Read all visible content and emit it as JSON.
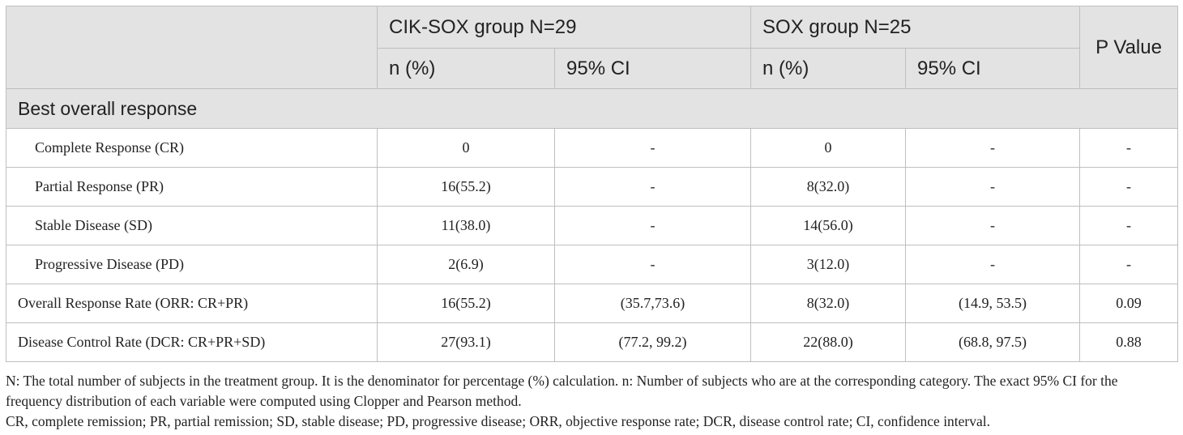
{
  "header": {
    "group1": "CIK-SOX group N=29",
    "group2": "SOX group N=25",
    "p_value": "P Value",
    "n_pct_1": "n (%)",
    "ci_1": "95% CI",
    "n_pct_2": "n (%)",
    "ci_2": "95% CI"
  },
  "section": {
    "title": "Best overall response"
  },
  "rows": [
    {
      "label": "Complete Response (CR)",
      "n1": "0",
      "ci1": "-",
      "n2": "0",
      "ci2": "-",
      "p": "-"
    },
    {
      "label": "Partial Response (PR)",
      "n1": "16(55.2)",
      "ci1": "-",
      "n2": "8(32.0)",
      "ci2": "-",
      "p": "-"
    },
    {
      "label": "Stable Disease (SD)",
      "n1": "11(38.0)",
      "ci1": "-",
      "n2": "14(56.0)",
      "ci2": "-",
      "p": "-"
    },
    {
      "label": "Progressive Disease (PD)",
      "n1": "2(6.9)",
      "ci1": "-",
      "n2": "3(12.0)",
      "ci2": "-",
      "p": "-"
    },
    {
      "label": "Overall Response Rate (ORR: CR+PR)",
      "n1": "16(55.2)",
      "ci1": "(35.7,73.6)",
      "n2": "8(32.0)",
      "ci2": "(14.9, 53.5)",
      "p": "0.09"
    },
    {
      "label": "Disease Control Rate (DCR: CR+PR+SD)",
      "n1": "27(93.1)",
      "ci1": "(77.2, 99.2)",
      "n2": "22(88.0)",
      "ci2": "(68.8, 97.5)",
      "p": "0.88"
    }
  ],
  "footnotes": {
    "note1": "N: The total number of subjects in the treatment group. It is the denominator for percentage (%) calculation. n: Number of subjects who are at the corresponding category. The exact 95% CI for the frequency distribution of each variable were computed using Clopper and Pearson method.",
    "note2": "CR, complete remission; PR, partial remission; SD, stable disease; PD, progressive disease; ORR, objective response rate; DCR, disease control rate; CI, confidence interval."
  }
}
